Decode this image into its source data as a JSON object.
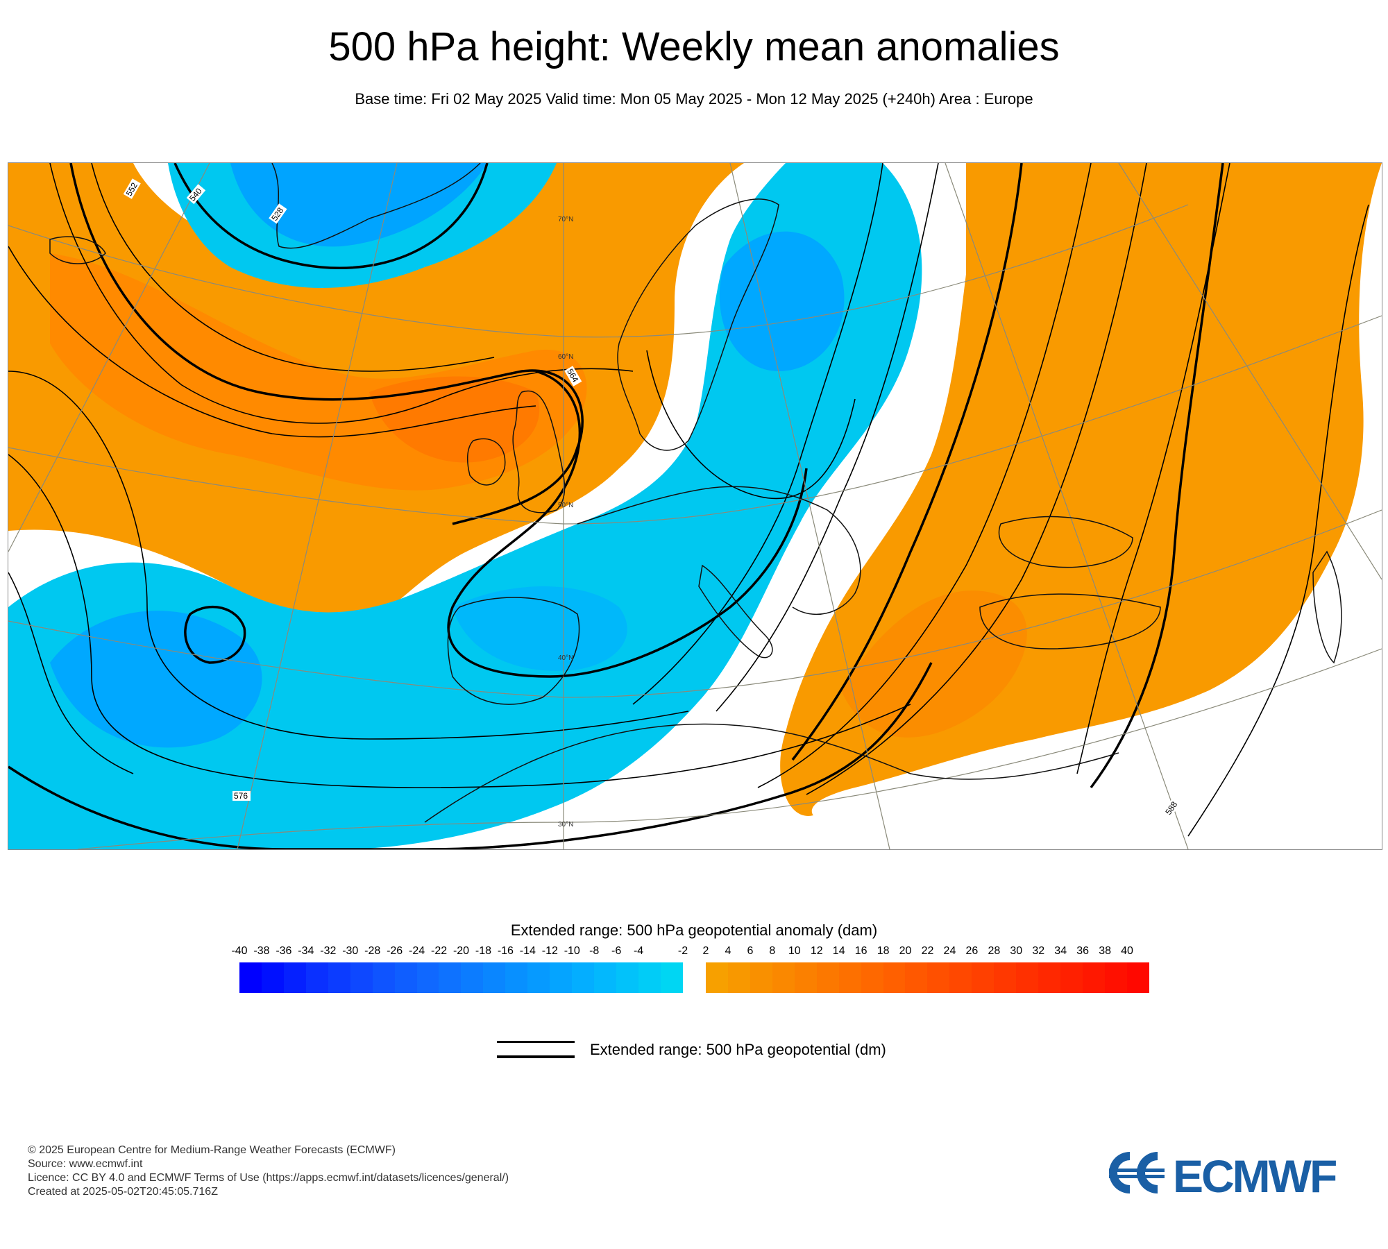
{
  "header": {
    "title": "500 hPa height: Weekly mean anomalies",
    "subtitle": "Base time: Fri 02 May 2025 Valid time: Mon 05 May 2025 - Mon 12 May 2025 (+240h) Area : Europe"
  },
  "map": {
    "region": "Europe",
    "latitude_labels": [
      "70°N",
      "60°N",
      "50°N",
      "40°N",
      "30°N"
    ],
    "contour_labels": [
      "528",
      "540",
      "552",
      "564",
      "576",
      "588"
    ],
    "colors": {
      "positive_anomaly": "#f99a00",
      "strong_positive_anomaly": "#ff7300",
      "negative_anomaly": "#00c8f0",
      "strong_negative_anomaly": "#00a0ff",
      "contour": "#000000"
    }
  },
  "colorbar": {
    "title": "Extended range: 500 hPa geopotential anomaly (dam)",
    "ticks": [
      "-40",
      "-38",
      "-36",
      "-34",
      "-32",
      "-30",
      "-28",
      "-26",
      "-24",
      "-22",
      "-20",
      "-18",
      "-16",
      "-14",
      "-12",
      "-10",
      "-8",
      "-6",
      "-4",
      "-2",
      "2",
      "4",
      "6",
      "8",
      "10",
      "12",
      "14",
      "16",
      "18",
      "20",
      "22",
      "24",
      "26",
      "28",
      "30",
      "32",
      "34",
      "36",
      "38",
      "40"
    ],
    "negative_colors": [
      "#0000ff",
      "#0010ff",
      "#0520ff",
      "#0a30ff",
      "#0c3cff",
      "#0e48ff",
      "#0f54ff",
      "#0f5eff",
      "#1068ff",
      "#0e72ff",
      "#0c7cff",
      "#0a86ff",
      "#0890ff",
      "#069aff",
      "#05a4ff",
      "#04aeff",
      "#03b8fd",
      "#02c2fa",
      "#01ccf7",
      "#00d6f3"
    ],
    "positive_colors": [
      "#f7a000",
      "#f89800",
      "#f99000",
      "#fa8800",
      "#fb8000",
      "#fc7800",
      "#fd7000",
      "#fe6800",
      "#ff6000",
      "#ff5800",
      "#ff5000",
      "#ff4800",
      "#ff4000",
      "#ff3800",
      "#ff3000",
      "#ff2800",
      "#ff2000",
      "#ff1800",
      "#ff1000",
      "#ff0800"
    ]
  },
  "legend": {
    "label": "Extended range: 500 hPa geopotential (dm)"
  },
  "footer": {
    "line1": "© 2025 European Centre for Medium-Range Weather Forecasts (ECMWF)",
    "line2": "Source: www.ecmwf.int",
    "line3": "Licence: CC BY 4.0 and ECMWF Terms of Use (https://apps.ecmwf.int/datasets/licences/general/)",
    "line4": "Created at 2025-05-02T20:45:05.716Z"
  },
  "logo": {
    "text": "ECMWF",
    "color": "#1a5fa5"
  }
}
